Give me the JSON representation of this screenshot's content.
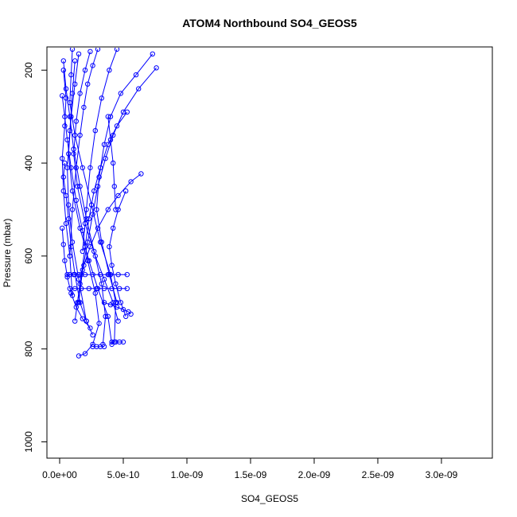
{
  "chart_data": {
    "type": "line",
    "title": "ATOM4 Northbound SO4_GEOS5",
    "xlabel": "SO4_GEOS5",
    "ylabel": "Pressure (mbar)",
    "xlim": [
      -1e-10,
      3.4e-09
    ],
    "ylim": [
      1035,
      150
    ],
    "y_reversed": true,
    "grid": false,
    "legend": "none",
    "x_ticks": [
      {
        "value": 0,
        "label": "0.0e+00"
      },
      {
        "value": 5e-10,
        "label": "5.0e-10"
      },
      {
        "value": 1e-09,
        "label": "1.0e-09"
      },
      {
        "value": 1.5e-09,
        "label": "1.5e-09"
      },
      {
        "value": 2e-09,
        "label": "2.0e-09"
      },
      {
        "value": 2.5e-09,
        "label": "2.5e-09"
      },
      {
        "value": 3e-09,
        "label": "3.0e-09"
      }
    ],
    "y_ticks": [
      {
        "value": 200,
        "label": "200"
      },
      {
        "value": 400,
        "label": "400"
      },
      {
        "value": 600,
        "label": "600"
      },
      {
        "value": 800,
        "label": "800"
      },
      {
        "value": 1000,
        "label": "1000"
      }
    ],
    "series_color": "#0000ff",
    "series": [
      {
        "x": [
          2e-11,
          4e-11,
          6e-11,
          9e-11,
          1.3e-10,
          1.8e-10,
          2.2e-10,
          2.8e-10,
          3.1e-10,
          2.6e-10,
          2e-10,
          1.5e-10
        ],
        "y": [
          255,
          300,
          350,
          410,
          480,
          545,
          610,
          680,
          745,
          790,
          810,
          815
        ]
      },
      {
        "x": [
          3e-11,
          5e-11,
          8e-11,
          1.1e-10,
          1.6e-10,
          2.1e-10,
          2.7e-10,
          3.3e-10,
          3.6e-10,
          3.4e-10
        ],
        "y": [
          180,
          240,
          300,
          370,
          450,
          520,
          590,
          660,
          730,
          790
        ]
      },
      {
        "x": [
          1e-10,
          9e-11,
          8e-11,
          1.2e-10,
          1.8e-10,
          2.5e-10,
          3.2e-10,
          4e-10,
          4.4e-10,
          4.3e-10
        ],
        "y": [
          155,
          210,
          270,
          340,
          410,
          490,
          570,
          640,
          700,
          785
        ]
      },
      {
        "x": [
          1.5e-10,
          1.2e-10,
          9e-11,
          7e-11,
          1e-10,
          1.6e-10,
          2.3e-10,
          3e-10,
          3.8e-10,
          4.1e-10
        ],
        "y": [
          165,
          230,
          300,
          380,
          460,
          540,
          610,
          670,
          730,
          790
        ]
      },
      {
        "x": [
          2.4e-10,
          2e-10,
          1.6e-10,
          1.3e-10,
          1.1e-10,
          1.4e-10,
          2e-10,
          2.8e-10,
          3.5e-10,
          4.2e-10,
          4.6e-10
        ],
        "y": [
          160,
          200,
          250,
          310,
          380,
          450,
          530,
          600,
          650,
          700,
          740
        ]
      },
      {
        "x": [
          7.6e-10,
          6.2e-10,
          5e-10,
          4.2e-10,
          3.6e-10,
          3e-10,
          2.6e-10,
          2.2e-10,
          1.8e-10,
          1.5e-10
        ],
        "y": [
          195,
          240,
          290,
          340,
          390,
          450,
          510,
          570,
          630,
          700
        ]
      },
      {
        "x": [
          7.3e-10,
          6e-10,
          4.8e-10,
          4e-10,
          3.5e-10,
          3.1e-10,
          2.9e-10,
          3.3e-10,
          3.9e-10,
          4.5e-10
        ],
        "y": [
          165,
          210,
          250,
          300,
          360,
          430,
          500,
          570,
          640,
          700
        ]
      },
      {
        "x": [
          6.4e-10,
          5.6e-10,
          4.6e-10,
          3.8e-10,
          3e-10,
          2.4e-10,
          1.9e-10,
          1.6e-10,
          1.4e-10,
          1.2e-10
        ],
        "y": [
          423,
          440,
          470,
          500,
          540,
          580,
          620,
          660,
          700,
          740
        ]
      },
      {
        "x": [
          5.3e-10,
          4.5e-10,
          3.8e-10,
          3.2e-10,
          2.7e-10,
          2.3e-10,
          2e-10,
          1.7e-10,
          1.4e-10
        ],
        "y": [
          290,
          320,
          360,
          410,
          460,
          520,
          580,
          640,
          700
        ]
      },
      {
        "x": [
          4e-11,
          3e-11,
          5e-11,
          7e-11,
          9e-11,
          1.2e-10,
          1.6e-10,
          2.1e-10,
          2.6e-10
        ],
        "y": [
          400,
          430,
          470,
          520,
          580,
          640,
          700,
          740,
          770
        ]
      },
      {
        "x": [
          2e-11,
          3e-11,
          4e-11,
          6e-11,
          9e-11,
          1.3e-10,
          1.8e-10,
          2.4e-10
        ],
        "y": [
          540,
          575,
          610,
          645,
          680,
          710,
          735,
          755
        ]
      },
      {
        "x": [
          6e-11,
          8e-11,
          1.1e-10,
          1.5e-10,
          2e-10,
          2.6e-10,
          3.2e-10,
          3.8e-10,
          4.6e-10,
          5.3e-10
        ],
        "y": [
          640,
          640,
          640,
          640,
          640,
          640,
          640,
          640,
          640,
          640
        ]
      },
      {
        "x": [
          8e-11,
          1.2e-10,
          1.7e-10,
          2.3e-10,
          2.9e-10,
          3.5e-10,
          4.1e-10,
          4.7e-10,
          5.3e-10
        ],
        "y": [
          670,
          670,
          670,
          670,
          670,
          670,
          670,
          670,
          670
        ]
      },
      {
        "x": [
          3.5e-10,
          4e-10,
          4.5e-10,
          5e-10,
          5.4e-10,
          5.6e-10
        ],
        "y": [
          700,
          705,
          710,
          715,
          720,
          725
        ]
      },
      {
        "x": [
          4.1e-10,
          4.4e-10,
          4.7e-10,
          5e-10
        ],
        "y": [
          785,
          785,
          785,
          785
        ]
      },
      {
        "x": [
          2.6e-10,
          2.9e-10,
          3.2e-10,
          3.5e-10
        ],
        "y": [
          795,
          795,
          795,
          795
        ]
      },
      {
        "x": [
          3e-11,
          5e-11,
          4e-11,
          2e-11,
          3e-11,
          5e-11,
          8e-11,
          1e-10
        ],
        "y": [
          200,
          260,
          320,
          390,
          460,
          530,
          600,
          685
        ]
      },
      {
        "x": [
          1.2e-10,
          1e-10,
          8e-11,
          6e-11,
          7e-11,
          1e-10,
          1.5e-10,
          2.1e-10
        ],
        "y": [
          180,
          250,
          330,
          410,
          490,
          570,
          650,
          740
        ]
      },
      {
        "x": [
          3e-10,
          2.6e-10,
          2.2e-10,
          1.9e-10,
          1.6e-10,
          1.3e-10,
          1e-10,
          8e-11
        ],
        "y": [
          155,
          190,
          230,
          280,
          340,
          410,
          500,
          600
        ]
      },
      {
        "x": [
          4.5e-10,
          3.9e-10,
          3.3e-10,
          2.8e-10,
          2.4e-10,
          2.1e-10,
          1.8e-10
        ],
        "y": [
          155,
          200,
          260,
          330,
          410,
          500,
          590
        ]
      },
      {
        "x": [
          5.2e-10,
          4.6e-10,
          4.2e-10,
          3.9e-10,
          4.1e-10,
          4.4e-10,
          4.8e-10,
          5.2e-10
        ],
        "y": [
          460,
          500,
          540,
          580,
          620,
          660,
          700,
          730
        ]
      },
      {
        "x": [
          3.8e-10,
          4e-10,
          4.2e-10,
          4.3e-10,
          4.4e-10
        ],
        "y": [
          300,
          350,
          400,
          450,
          500
        ]
      }
    ]
  }
}
